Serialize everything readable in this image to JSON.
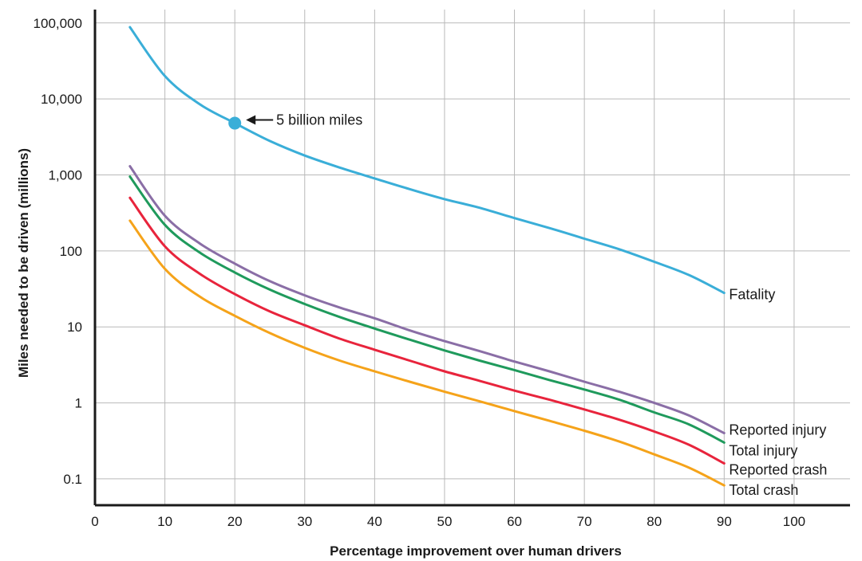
{
  "chart_data": {
    "type": "line",
    "title": "",
    "xlabel": "Percentage improvement over human drivers",
    "ylabel": "Miles needed to be driven (millions)",
    "xlim": [
      0,
      108
    ],
    "ylim": [
      0.045,
      150000
    ],
    "yscale": "log",
    "x_ticks": [
      0,
      10,
      20,
      30,
      40,
      50,
      60,
      70,
      80,
      90,
      100
    ],
    "x_tick_labels": [
      "0",
      "10",
      "20",
      "30",
      "40",
      "50",
      "60",
      "70",
      "80",
      "90",
      "100"
    ],
    "y_ticks": [
      0.1,
      1,
      10,
      100,
      1000,
      10000,
      100000
    ],
    "y_tick_labels": [
      "0.1",
      "1",
      "10",
      "100",
      "1,000",
      "10,000",
      "100,000"
    ],
    "grid": true,
    "series": [
      {
        "name": "Fatality",
        "color": "#3aaed8",
        "x": [
          5,
          10,
          15,
          20,
          25,
          30,
          35,
          40,
          45,
          50,
          55,
          60,
          65,
          70,
          75,
          80,
          85,
          90
        ],
        "y": [
          88000,
          20000,
          8500,
          4800,
          2800,
          1800,
          1250,
          900,
          650,
          480,
          370,
          270,
          200,
          145,
          105,
          72,
          48,
          28
        ]
      },
      {
        "name": "Reported injury",
        "color": "#8a6ea6",
        "x": [
          5,
          10,
          15,
          20,
          25,
          30,
          35,
          40,
          45,
          50,
          55,
          60,
          65,
          70,
          75,
          80,
          85,
          90
        ],
        "y": [
          1300,
          290,
          125,
          68,
          40,
          26,
          18,
          13,
          9,
          6.5,
          4.8,
          3.5,
          2.6,
          1.9,
          1.4,
          1.0,
          0.68,
          0.4
        ]
      },
      {
        "name": "Total injury",
        "color": "#1f9a5c",
        "x": [
          5,
          10,
          15,
          20,
          25,
          30,
          35,
          40,
          45,
          50,
          55,
          60,
          65,
          70,
          75,
          80,
          85,
          90
        ],
        "y": [
          950,
          220,
          95,
          52,
          31,
          20,
          13.5,
          9.5,
          6.8,
          4.9,
          3.6,
          2.7,
          2.0,
          1.5,
          1.1,
          0.75,
          0.52,
          0.3
        ]
      },
      {
        "name": "Reported crash",
        "color": "#e8243c",
        "x": [
          5,
          10,
          15,
          20,
          25,
          30,
          35,
          40,
          45,
          50,
          55,
          60,
          65,
          70,
          75,
          80,
          85,
          90
        ],
        "y": [
          500,
          115,
          50,
          27,
          16,
          10.5,
          7,
          5,
          3.6,
          2.6,
          1.95,
          1.45,
          1.1,
          0.82,
          0.6,
          0.42,
          0.28,
          0.16
        ]
      },
      {
        "name": "Total crash",
        "color": "#f5a31a",
        "x": [
          5,
          10,
          15,
          20,
          25,
          30,
          35,
          40,
          45,
          50,
          55,
          60,
          65,
          70,
          75,
          80,
          85,
          90
        ],
        "y": [
          250,
          58,
          25,
          14,
          8.3,
          5.3,
          3.6,
          2.6,
          1.9,
          1.4,
          1.05,
          0.78,
          0.58,
          0.43,
          0.31,
          0.21,
          0.14,
          0.082
        ]
      }
    ],
    "annotations": [
      {
        "text": "5 billion miles",
        "x": 20,
        "y": 4800,
        "series": "Fatality",
        "marker_color": "#3aaed8"
      }
    ]
  }
}
